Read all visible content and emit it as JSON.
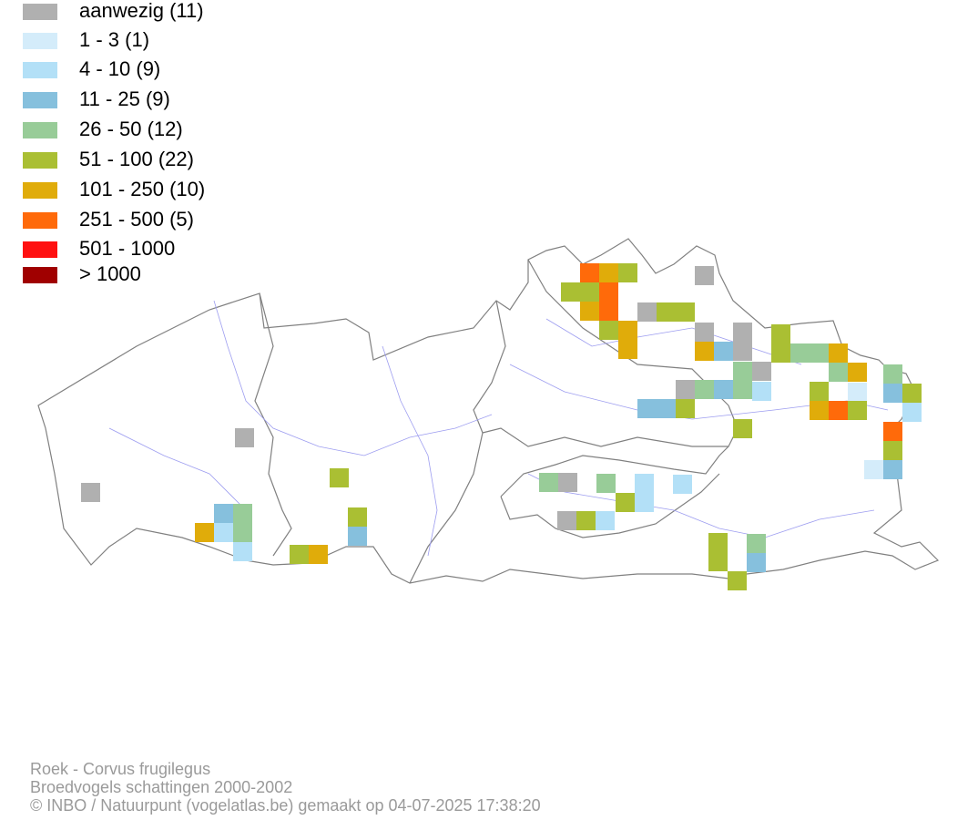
{
  "legend": {
    "items": [
      {
        "label": "aanwezig (11)",
        "color": "#b0b0b0"
      },
      {
        "label": "1 - 3 (1)",
        "color": "#d4ecfa"
      },
      {
        "label": "4 - 10 (9)",
        "color": "#b3e0f7"
      },
      {
        "label": "11 - 25 (9)",
        "color": "#86c0dd"
      },
      {
        "label": "26 - 50 (12)",
        "color": "#98cc98"
      },
      {
        "label": "51 - 100 (22)",
        "color": "#aabf33"
      },
      {
        "label": "101 - 250 (10)",
        "color": "#e0ac0a"
      },
      {
        "label": "251 - 500 (5)",
        "color": "#ff6a0a"
      },
      {
        "label": "501 - 1000",
        "color": "#ff1010"
      },
      {
        "label": "> 1000",
        "color": "#a00000"
      }
    ]
  },
  "footer": {
    "lines": [
      "Roek - Corvus frugilegus",
      "Broedvogels schattingen 2000-2002",
      "© INBO / Natuurpunt (vogelatlas.be) gemaakt op 04-07-2025 17:38:20"
    ]
  }
}
